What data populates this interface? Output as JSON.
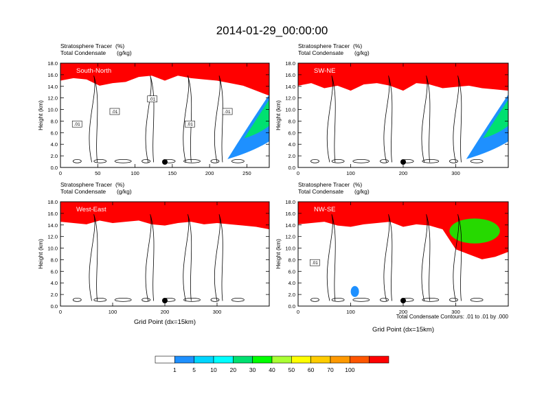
{
  "title": "2014-01-29_00:00:00",
  "footnote": "Total Condensate Contours: .01 to .01 by .000",
  "colorbar": {
    "colors": [
      "#ffffff",
      "#1e90ff",
      "#00d5ff",
      "#00ffff",
      "#00e070",
      "#00ff00",
      "#aaff33",
      "#ffff00",
      "#ffcc00",
      "#ff9900",
      "#ff5500",
      "#ff0000"
    ],
    "labels": [
      "1",
      "5",
      "10",
      "20",
      "30",
      "40",
      "50",
      "60",
      "70",
      "100"
    ]
  },
  "chart_data": [
    {
      "type": "contour",
      "label": "South-North",
      "title_left_1": "Stratosphere Tracer",
      "units_1": "(%)",
      "title_left_2": "Total Condensate",
      "units_2": "(g/kg)",
      "ylabel": "Height (km)",
      "xlabel": "",
      "xlim": [
        0,
        280
      ],
      "ylim": [
        0,
        18
      ],
      "xticks": [
        "0",
        "50",
        "100",
        "150",
        "200",
        "250"
      ],
      "yticks": [
        "0.0",
        "2.0",
        "4.0",
        "6.0",
        "8.0",
        "10.0",
        "12.0",
        "14.0",
        "16.0",
        "18.0"
      ],
      "marker_x": 140,
      "contour_labels": [
        ".01",
        ".01",
        ".01",
        ".01",
        ".01"
      ]
    },
    {
      "type": "contour",
      "label": "SW-NE",
      "title_left_1": "Stratosphere Tracer",
      "units_1": "(%)",
      "title_left_2": "Total Condensate",
      "units_2": "(g/kg)",
      "ylabel": "Height (km)",
      "xlabel": "",
      "xlim": [
        0,
        400
      ],
      "ylim": [
        0,
        18
      ],
      "xticks": [
        "0",
        "100",
        "200",
        "300"
      ],
      "yticks": [
        "0.0",
        "2.0",
        "4.0",
        "6.0",
        "8.0",
        "10.0",
        "12.0",
        "14.0",
        "16.0",
        "18.0"
      ],
      "marker_x": 200,
      "contour_labels": []
    },
    {
      "type": "contour",
      "label": "West-East",
      "title_left_1": "Stratosphere Tracer",
      "units_1": "(%)",
      "title_left_2": "Total Condensate",
      "units_2": "(g/kg)",
      "ylabel": "Height (km)",
      "xlabel": "Grid Point (dx=15km)",
      "xlim": [
        0,
        400
      ],
      "ylim": [
        0,
        18
      ],
      "xticks": [
        "0",
        "100",
        "200",
        "300"
      ],
      "yticks": [
        "0.0",
        "2.0",
        "4.0",
        "6.0",
        "8.0",
        "10.0",
        "12.0",
        "14.0",
        "16.0",
        "18.0"
      ],
      "marker_x": 200,
      "contour_labels": []
    },
    {
      "type": "contour",
      "label": "NW-SE",
      "title_left_1": "Stratosphere Tracer",
      "units_1": "(%)",
      "title_left_2": "Total Condensate",
      "units_2": "(g/kg)",
      "ylabel": "Height (km)",
      "xlabel": "Grid Point (dx=15km)",
      "xlim": [
        0,
        400
      ],
      "ylim": [
        0,
        18
      ],
      "xticks": [
        "0",
        "100",
        "200",
        "300"
      ],
      "yticks": [
        "0.0",
        "2.0",
        "4.0",
        "6.0",
        "8.0",
        "10.0",
        "12.0",
        "14.0",
        "16.0",
        "18.0"
      ],
      "marker_x": 200,
      "contour_labels": [
        ".01"
      ]
    }
  ]
}
